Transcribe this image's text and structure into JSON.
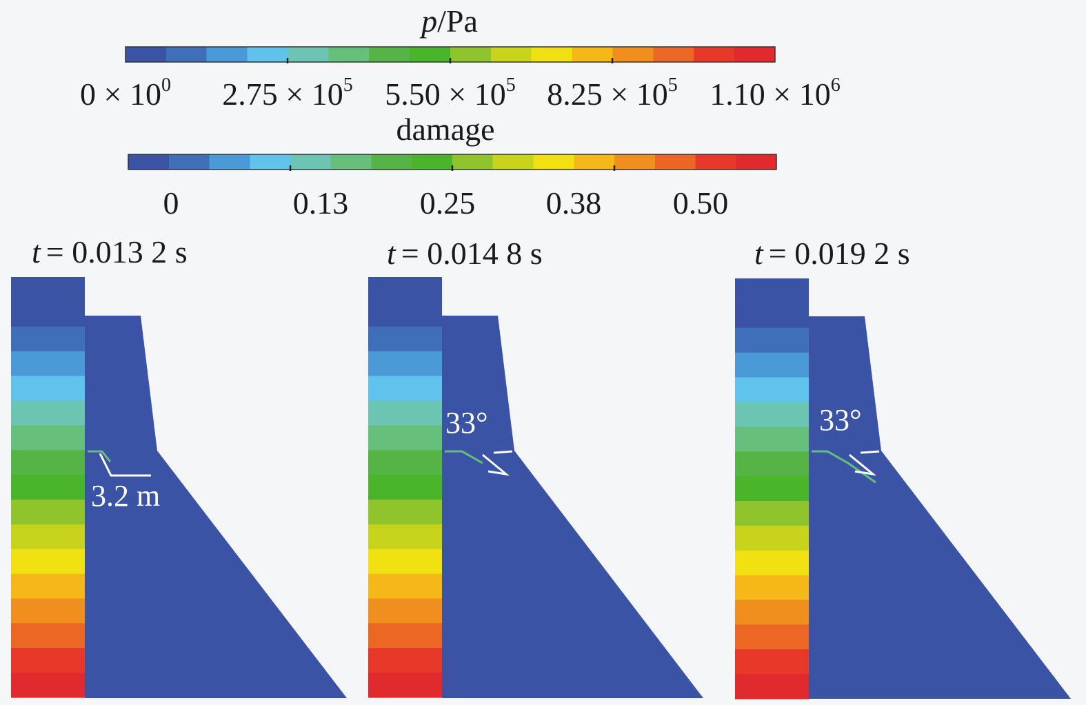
{
  "pressure_bar": {
    "symbol": "p",
    "unit": "/Pa",
    "ticks": [
      {
        "m": "0",
        "e": "0"
      },
      {
        "m": "2.75",
        "e": "5"
      },
      {
        "m": "5.50",
        "e": "5"
      },
      {
        "m": "8.25",
        "e": "5"
      },
      {
        "m": "1.10",
        "e": "6"
      }
    ],
    "min": 0,
    "max": 1100000
  },
  "damage_bar": {
    "title": "damage",
    "ticks": [
      "0",
      "0.13",
      "0.25",
      "0.38",
      "0.50"
    ],
    "min": 0,
    "max": 0.5
  },
  "colors": {
    "scale": [
      "#3a53a4",
      "#3f6fb8",
      "#4a9ad8",
      "#5fc3ec",
      "#6cc4b3",
      "#66c07b",
      "#56b447",
      "#4ab52a",
      "#8fc42c",
      "#c8d41c",
      "#f1e112",
      "#f5b818",
      "#f08e1e",
      "#ec6624",
      "#e8382a",
      "#e02a2e"
    ],
    "dam_body": "#3a53a4",
    "crack": "#66c07b",
    "annotation": "#ffffff"
  },
  "panels": [
    {
      "time_symbol": "t",
      "time_value": "= 0.013 2 s",
      "annotation": "3.2 m"
    },
    {
      "time_symbol": "t",
      "time_value": "= 0.014 8 s",
      "annotation": "33°"
    },
    {
      "time_symbol": "t",
      "time_value": "= 0.019 2 s",
      "annotation": "33°"
    }
  ]
}
